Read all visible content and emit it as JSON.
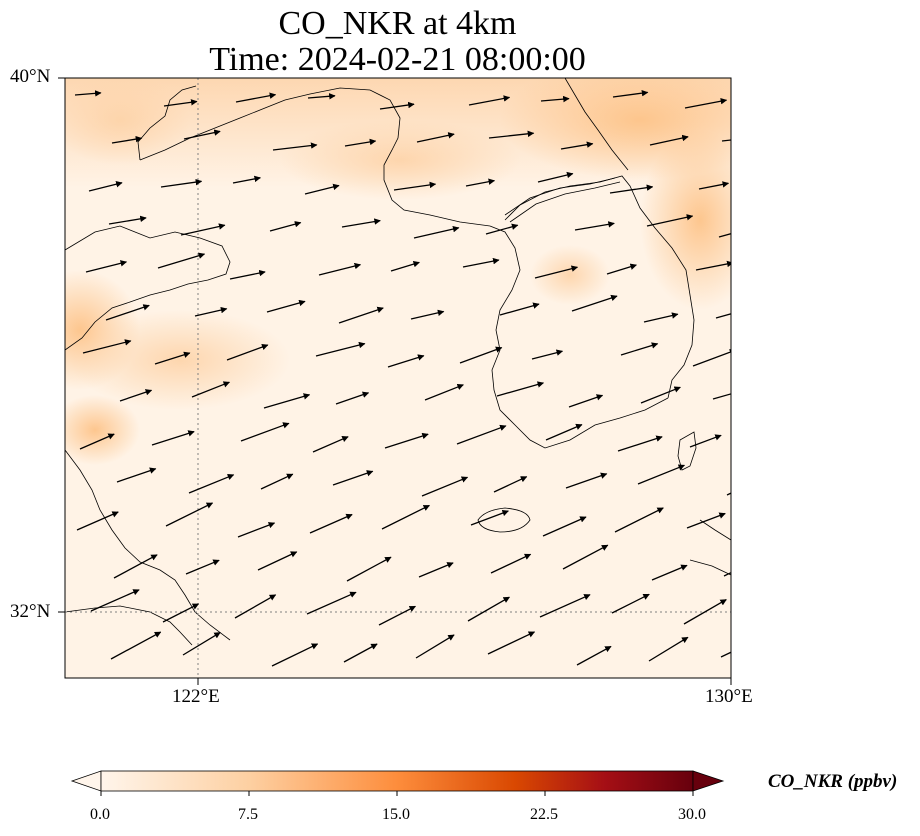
{
  "title": "CO_NKR at 4km",
  "subtitle": "Time: 2024-02-21 08:00:00",
  "map": {
    "lon_range": [
      119,
      130
    ],
    "lat_range": [
      31,
      40
    ],
    "lat_ticks": [
      {
        "value": 40,
        "label": "40°N"
      },
      {
        "value": 32,
        "label": "32°N"
      }
    ],
    "lon_ticks": [
      {
        "value": 122,
        "label": "122°E"
      },
      {
        "value": 130,
        "label": "130°E"
      }
    ],
    "gridlines": "dotted at 122°E and 32°N",
    "field": "CO_NKR concentration (orange shading)",
    "vectors": "wind arrows pointing east-northeast"
  },
  "colorbar": {
    "label": "CO_NKR (ppbv)",
    "range": [
      0,
      30
    ],
    "ticks": [
      "0.0",
      "7.5",
      "15.0",
      "22.5",
      "30.0"
    ],
    "colormap": [
      "#fff5eb",
      "#fdd0a2",
      "#fd8d3c",
      "#d94801",
      "#a50f15",
      "#67000d"
    ],
    "extend": "both"
  }
}
